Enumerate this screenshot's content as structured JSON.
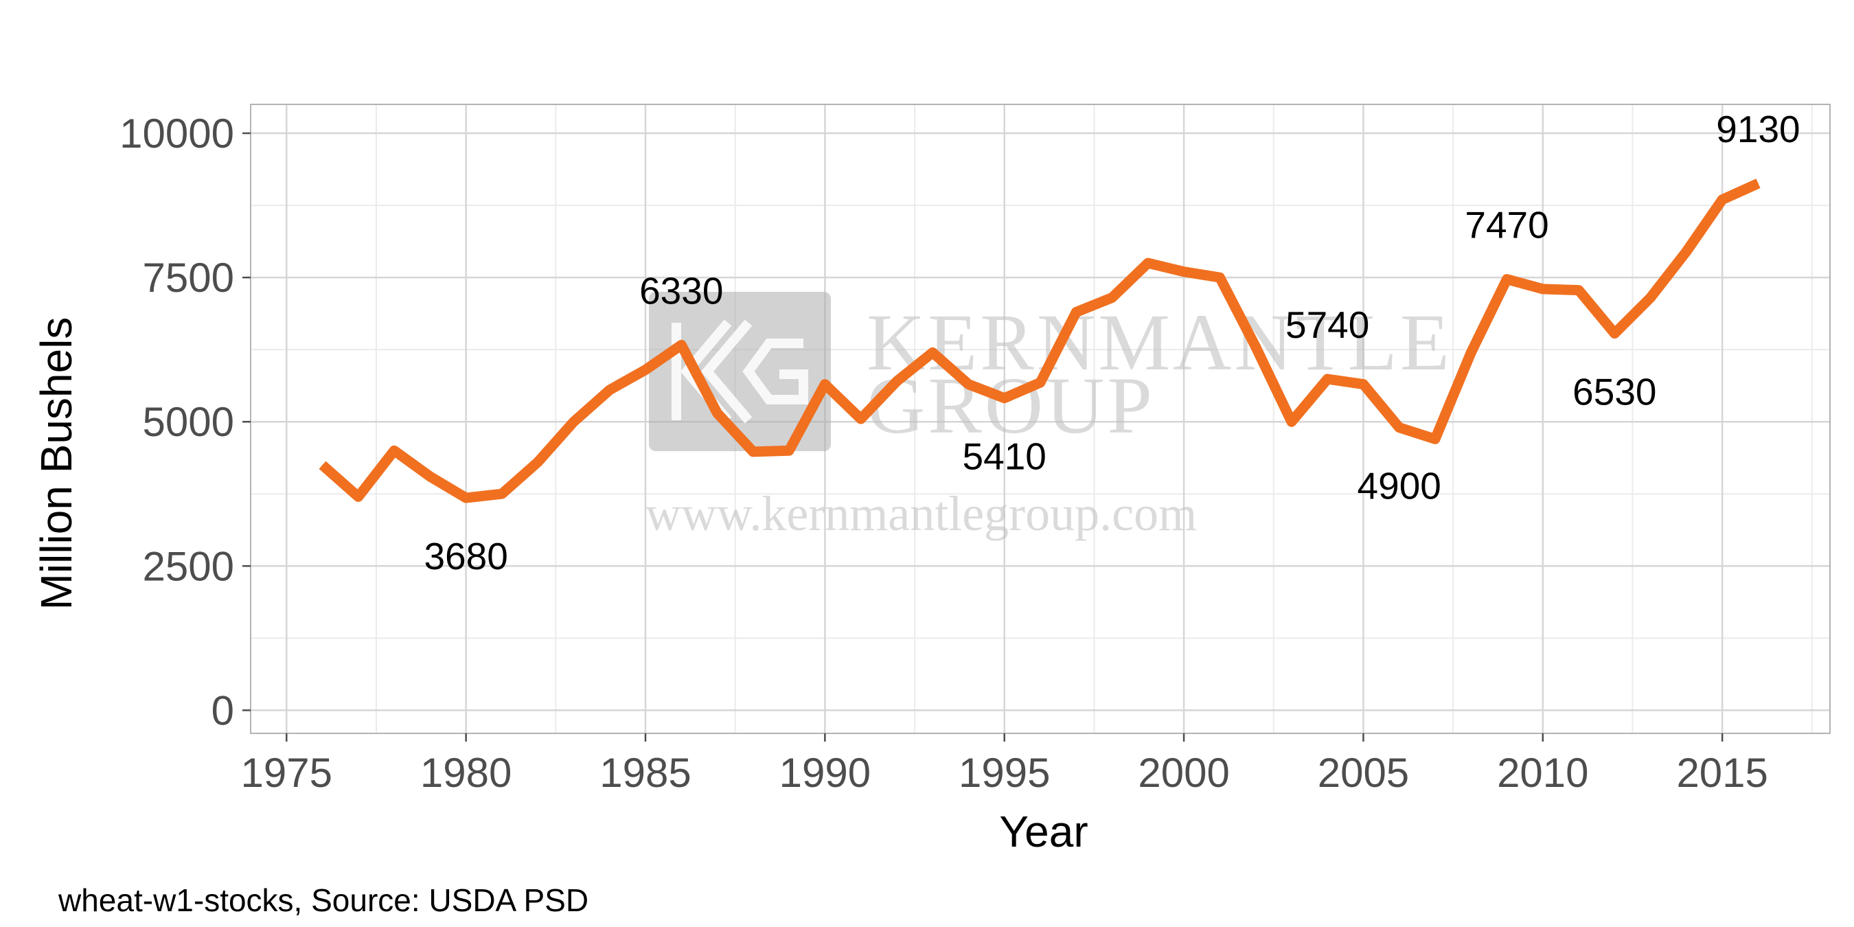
{
  "chart_data": {
    "type": "line",
    "title": "",
    "xlabel": "Year",
    "ylabel": "Million Bushels",
    "xlim": [
      1974,
      2018
    ],
    "ylim": [
      -400,
      10500
    ],
    "x_ticks": [
      "1975",
      "1980",
      "1985",
      "1990",
      "1995",
      "2000",
      "2005",
      "2010",
      "2015"
    ],
    "y_ticks": [
      "0",
      "2500",
      "5000",
      "7500",
      "10000"
    ],
    "grid": true,
    "line_color": "#f07020",
    "series": [
      {
        "x": [
          1976,
          1977,
          1978,
          1979,
          1980,
          1981,
          1982,
          1983,
          1984,
          1985,
          1986,
          1987,
          1988,
          1989,
          1990,
          1991,
          1992,
          1993,
          1994,
          1995,
          1996,
          1997,
          1998,
          1999,
          2000,
          2001,
          2002,
          2003,
          2004,
          2005,
          2006,
          2007,
          2008,
          2009,
          2010,
          2011,
          2012,
          2013,
          2014,
          2015,
          2016
        ],
        "y": [
          4250,
          3700,
          4500,
          4050,
          3680,
          3750,
          4300,
          5000,
          5550,
          5900,
          6330,
          5150,
          4480,
          4500,
          5650,
          5050,
          5700,
          6200,
          5650,
          5410,
          5680,
          6900,
          7150,
          7750,
          7600,
          7500,
          6300,
          5000,
          5740,
          5650,
          4900,
          4700,
          6200,
          7470,
          7300,
          7280,
          6530,
          7150,
          7950,
          8850,
          9130
        ]
      }
    ],
    "annotations": [
      {
        "text": "3680",
        "x": 1980,
        "y": 3680
      },
      {
        "text": "6330",
        "x": 1986,
        "y": 6330
      },
      {
        "text": "5410",
        "x": 1995,
        "y": 5410
      },
      {
        "text": "5740",
        "x": 2004,
        "y": 5740
      },
      {
        "text": "4900",
        "x": 2006,
        "y": 4900
      },
      {
        "text": "7470",
        "x": 2009,
        "y": 7470
      },
      {
        "text": "6530",
        "x": 2012,
        "y": 6530
      },
      {
        "text": "9130",
        "x": 2016,
        "y": 9130
      }
    ],
    "caption": "wheat-w1-stocks, Source: USDA PSD"
  },
  "watermark": {
    "logo_text": "KG",
    "title_line1": "KERNMANTLE",
    "title_line2": "GROUP",
    "url": "www.kernmantlegroup.com"
  }
}
